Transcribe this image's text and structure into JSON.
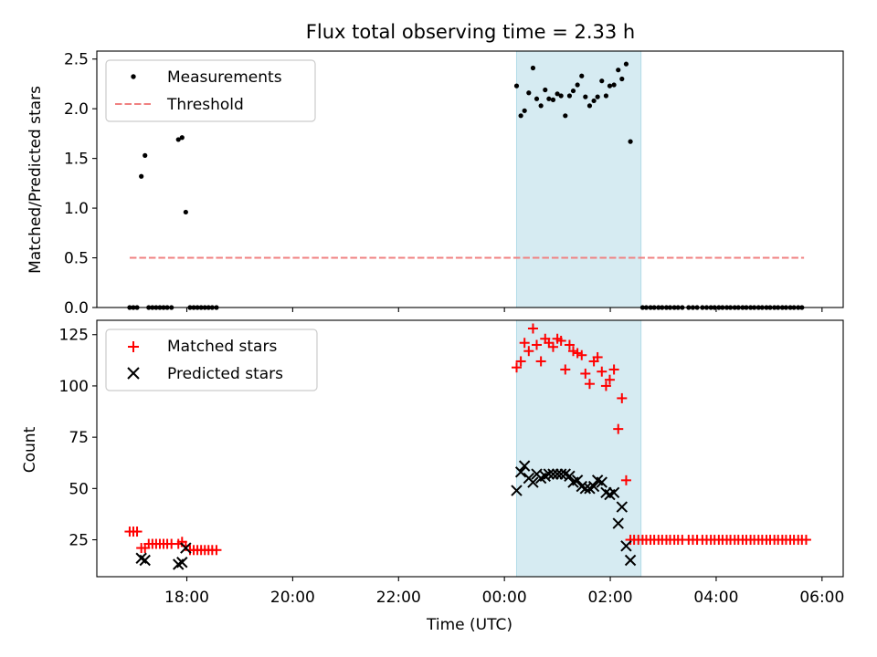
{
  "chart_data": {
    "type": "scatter",
    "title": "Flux total observing time = 2.33 h",
    "xlabel": "Time (UTC)",
    "x_unit": "hours since 00:00 UTC on day 1",
    "xlim": [
      16.3,
      30.4
    ],
    "x_ticks": [
      {
        "v": 18,
        "label": "18:00"
      },
      {
        "v": 20,
        "label": "20:00"
      },
      {
        "v": 22,
        "label": "22:00"
      },
      {
        "v": 24,
        "label": "00:00"
      },
      {
        "v": 26,
        "label": "02:00"
      },
      {
        "v": 28,
        "label": "04:00"
      },
      {
        "v": 30,
        "label": "06:00"
      }
    ],
    "observing_window": [
      24.23,
      26.58
    ],
    "window_color": "#add8e6",
    "top_panel": {
      "ylabel": "Matched/Predicted stars",
      "ylim": [
        0,
        2.58
      ],
      "y_ticks": [
        {
          "v": 0.0,
          "label": "0.0"
        },
        {
          "v": 0.5,
          "label": "0.5"
        },
        {
          "v": 1.0,
          "label": "1.0"
        },
        {
          "v": 1.5,
          "label": "1.5"
        },
        {
          "v": 2.0,
          "label": "2.0"
        },
        {
          "v": 2.5,
          "label": "2.5"
        }
      ],
      "legend": {
        "location": "upper-left",
        "measurements_label": "Measurements",
        "threshold_label": "Threshold"
      },
      "threshold": {
        "value": 0.5,
        "x_start": 16.92,
        "x_end": 29.66,
        "color": "#f08080"
      },
      "measurements": {
        "name": "Measurements",
        "color": "#000000",
        "points": [
          [
            16.92,
            0
          ],
          [
            16.99,
            0
          ],
          [
            17.06,
            0
          ],
          [
            17.14,
            1.32
          ],
          [
            17.21,
            1.53
          ],
          [
            17.28,
            0
          ],
          [
            17.35,
            0
          ],
          [
            17.42,
            0
          ],
          [
            17.49,
            0
          ],
          [
            17.56,
            0
          ],
          [
            17.63,
            0
          ],
          [
            17.71,
            0
          ],
          [
            17.84,
            1.69
          ],
          [
            17.91,
            1.71
          ],
          [
            17.98,
            0.96
          ],
          [
            18.06,
            0
          ],
          [
            18.13,
            0
          ],
          [
            18.2,
            0
          ],
          [
            18.27,
            0
          ],
          [
            18.34,
            0
          ],
          [
            18.41,
            0
          ],
          [
            18.48,
            0
          ],
          [
            18.56,
            0
          ],
          [
            24.23,
            2.23
          ],
          [
            24.31,
            1.93
          ],
          [
            24.38,
            1.98
          ],
          [
            24.46,
            2.16
          ],
          [
            24.54,
            2.41
          ],
          [
            24.61,
            2.1
          ],
          [
            24.69,
            2.03
          ],
          [
            24.77,
            2.19
          ],
          [
            24.84,
            2.1
          ],
          [
            24.92,
            2.09
          ],
          [
            25.0,
            2.15
          ],
          [
            25.07,
            2.13
          ],
          [
            25.15,
            1.93
          ],
          [
            25.23,
            2.13
          ],
          [
            25.3,
            2.18
          ],
          [
            25.38,
            2.24
          ],
          [
            25.46,
            2.33
          ],
          [
            25.53,
            2.12
          ],
          [
            25.61,
            2.03
          ],
          [
            25.69,
            2.08
          ],
          [
            25.76,
            2.12
          ],
          [
            25.84,
            2.28
          ],
          [
            25.92,
            2.13
          ],
          [
            25.99,
            2.23
          ],
          [
            26.07,
            2.24
          ],
          [
            26.15,
            2.39
          ],
          [
            26.22,
            2.3
          ],
          [
            26.3,
            2.45
          ],
          [
            26.38,
            1.67
          ],
          [
            26.61,
            0
          ],
          [
            26.68,
            0
          ],
          [
            26.76,
            0
          ],
          [
            26.83,
            0
          ],
          [
            26.91,
            0
          ],
          [
            26.98,
            0
          ],
          [
            27.06,
            0
          ],
          [
            27.13,
            0
          ],
          [
            27.21,
            0
          ],
          [
            27.28,
            0
          ],
          [
            27.36,
            0
          ],
          [
            27.48,
            0
          ],
          [
            27.56,
            0
          ],
          [
            27.64,
            0
          ],
          [
            27.74,
            0
          ],
          [
            27.82,
            0
          ],
          [
            27.9,
            0
          ],
          [
            27.97,
            0
          ],
          [
            28.05,
            0
          ],
          [
            28.12,
            0
          ],
          [
            28.2,
            0
          ],
          [
            28.27,
            0
          ],
          [
            28.35,
            0
          ],
          [
            28.42,
            0
          ],
          [
            28.5,
            0
          ],
          [
            28.57,
            0
          ],
          [
            28.65,
            0
          ],
          [
            28.72,
            0
          ],
          [
            28.8,
            0
          ],
          [
            28.87,
            0
          ],
          [
            28.95,
            0
          ],
          [
            29.02,
            0
          ],
          [
            29.1,
            0
          ],
          [
            29.17,
            0
          ],
          [
            29.25,
            0
          ],
          [
            29.32,
            0
          ],
          [
            29.4,
            0
          ],
          [
            29.47,
            0
          ],
          [
            29.55,
            0
          ],
          [
            29.62,
            0
          ]
        ]
      }
    },
    "bottom_panel": {
      "ylabel": "Count",
      "ylim": [
        7,
        132
      ],
      "y_ticks": [
        {
          "v": 25,
          "label": "25"
        },
        {
          "v": 50,
          "label": "50"
        },
        {
          "v": 75,
          "label": "75"
        },
        {
          "v": 100,
          "label": "100"
        },
        {
          "v": 125,
          "label": "125"
        }
      ],
      "legend": {
        "location": "upper-left",
        "matched_label": "Matched stars",
        "predicted_label": "Predicted stars"
      },
      "series": [
        {
          "name": "Matched stars",
          "marker": "plus",
          "color": "#ff0000",
          "points": [
            [
              16.92,
              29
            ],
            [
              16.99,
              29
            ],
            [
              17.06,
              29
            ],
            [
              17.14,
              21
            ],
            [
              17.21,
              21
            ],
            [
              17.28,
              23
            ],
            [
              17.35,
              23
            ],
            [
              17.42,
              23
            ],
            [
              17.49,
              23
            ],
            [
              17.56,
              23
            ],
            [
              17.63,
              23
            ],
            [
              17.71,
              23
            ],
            [
              17.84,
              23
            ],
            [
              17.91,
              24
            ],
            [
              17.98,
              22
            ],
            [
              18.06,
              20
            ],
            [
              18.13,
              20
            ],
            [
              18.2,
              20
            ],
            [
              18.27,
              20
            ],
            [
              18.34,
              20
            ],
            [
              18.41,
              20
            ],
            [
              18.48,
              20
            ],
            [
              18.56,
              20
            ],
            [
              24.23,
              109
            ],
            [
              24.31,
              112
            ],
            [
              24.38,
              121
            ],
            [
              24.46,
              117
            ],
            [
              24.54,
              128
            ],
            [
              24.61,
              120
            ],
            [
              24.69,
              112
            ],
            [
              24.77,
              123
            ],
            [
              24.84,
              121
            ],
            [
              24.92,
              119
            ],
            [
              25.0,
              123
            ],
            [
              25.07,
              122
            ],
            [
              25.15,
              108
            ],
            [
              25.23,
              120
            ],
            [
              25.3,
              117
            ],
            [
              25.38,
              116
            ],
            [
              25.46,
              115
            ],
            [
              25.53,
              106
            ],
            [
              25.61,
              101
            ],
            [
              25.69,
              112
            ],
            [
              25.76,
              114
            ],
            [
              25.84,
              107
            ],
            [
              25.92,
              100
            ],
            [
              25.99,
              103
            ],
            [
              26.07,
              108
            ],
            [
              26.15,
              79
            ],
            [
              26.22,
              94
            ],
            [
              26.3,
              54
            ],
            [
              26.38,
              25
            ],
            [
              26.45,
              25
            ],
            [
              26.53,
              25
            ],
            [
              26.61,
              25
            ],
            [
              26.68,
              25
            ],
            [
              26.76,
              25
            ],
            [
              26.83,
              25
            ],
            [
              26.91,
              25
            ],
            [
              26.98,
              25
            ],
            [
              27.06,
              25
            ],
            [
              27.13,
              25
            ],
            [
              27.21,
              25
            ],
            [
              27.28,
              25
            ],
            [
              27.36,
              25
            ],
            [
              27.48,
              25
            ],
            [
              27.56,
              25
            ],
            [
              27.64,
              25
            ],
            [
              27.74,
              25
            ],
            [
              27.82,
              25
            ],
            [
              27.9,
              25
            ],
            [
              27.97,
              25
            ],
            [
              28.05,
              25
            ],
            [
              28.12,
              25
            ],
            [
              28.2,
              25
            ],
            [
              28.27,
              25
            ],
            [
              28.35,
              25
            ],
            [
              28.42,
              25
            ],
            [
              28.5,
              25
            ],
            [
              28.57,
              25
            ],
            [
              28.65,
              25
            ],
            [
              28.72,
              25
            ],
            [
              28.8,
              25
            ],
            [
              28.87,
              25
            ],
            [
              28.95,
              25
            ],
            [
              29.02,
              25
            ],
            [
              29.1,
              25
            ],
            [
              29.17,
              25
            ],
            [
              29.25,
              25
            ],
            [
              29.32,
              25
            ],
            [
              29.4,
              25
            ],
            [
              29.47,
              25
            ],
            [
              29.55,
              25
            ],
            [
              29.62,
              25
            ],
            [
              29.7,
              25
            ]
          ]
        },
        {
          "name": "Predicted stars",
          "marker": "x",
          "color": "#000000",
          "points": [
            [
              17.14,
              16
            ],
            [
              17.21,
              15
            ],
            [
              17.84,
              13
            ],
            [
              17.91,
              14
            ],
            [
              17.98,
              21
            ],
            [
              24.23,
              49
            ],
            [
              24.31,
              58
            ],
            [
              24.38,
              61
            ],
            [
              24.46,
              55
            ],
            [
              24.54,
              53
            ],
            [
              24.61,
              57
            ],
            [
              24.69,
              55
            ],
            [
              24.77,
              56
            ],
            [
              24.84,
              57
            ],
            [
              24.92,
              57
            ],
            [
              25.0,
              57
            ],
            [
              25.07,
              57
            ],
            [
              25.15,
              57
            ],
            [
              25.23,
              56
            ],
            [
              25.3,
              53
            ],
            [
              25.38,
              54
            ],
            [
              25.46,
              51
            ],
            [
              25.53,
              50
            ],
            [
              25.61,
              50
            ],
            [
              25.69,
              51
            ],
            [
              25.76,
              54
            ],
            [
              25.84,
              53
            ],
            [
              25.92,
              48
            ],
            [
              25.99,
              47
            ],
            [
              26.07,
              48
            ],
            [
              26.15,
              33
            ],
            [
              26.22,
              41
            ],
            [
              26.3,
              22
            ],
            [
              26.38,
              15
            ]
          ]
        }
      ]
    }
  }
}
